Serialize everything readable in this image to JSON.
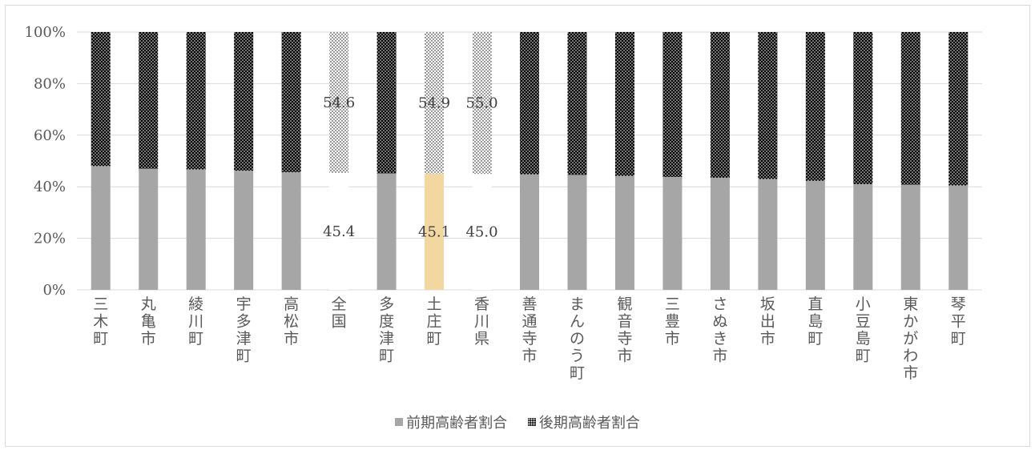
{
  "chart_data": {
    "type": "bar",
    "stacked": "percent",
    "categories": [
      "三木町",
      "丸亀市",
      "綾川町",
      "宇多津町",
      "高松市",
      "全国",
      "多度津町",
      "土庄町",
      "香川県",
      "善通寺市",
      "まんのう町",
      "観音寺市",
      "三豊市",
      "さぬき市",
      "坂出市",
      "直島町",
      "小豆島町",
      "東かがわ市",
      "琴平町"
    ],
    "series": [
      {
        "name": "前期高齢者割合",
        "values": [
          48.0,
          47.0,
          46.7,
          46.2,
          45.6,
          45.4,
          45.2,
          45.1,
          45.0,
          44.8,
          44.6,
          44.2,
          43.8,
          43.5,
          43.0,
          42.3,
          41.0,
          40.8,
          40.5
        ]
      },
      {
        "name": "後期高齢者割合",
        "values": [
          52.0,
          53.0,
          53.3,
          53.8,
          54.4,
          54.6,
          54.8,
          54.9,
          55.0,
          55.2,
          55.4,
          55.8,
          56.2,
          56.5,
          57.0,
          57.7,
          59.0,
          59.2,
          59.5
        ]
      }
    ],
    "ylim": [
      0,
      100
    ],
    "yticks": [
      "0%",
      "20%",
      "40%",
      "60%",
      "80%",
      "100%"
    ],
    "data_labels": [
      {
        "category": "全国",
        "early": "45.4",
        "late": "54.6"
      },
      {
        "category": "土庄町",
        "early": "45.1",
        "late": "54.9"
      },
      {
        "category": "香川県",
        "early": "45.0",
        "late": "55.0"
      }
    ],
    "highlight": {
      "土庄町": "#f2d7a0",
      "全国": "#ffffff",
      "香川県": "#ffffff"
    },
    "colors": {
      "early": "#a6a6a6",
      "late": "#000000",
      "axis": "#d9d9d9",
      "text": "#595959"
    },
    "grid": true,
    "legend_position": "bottom"
  }
}
